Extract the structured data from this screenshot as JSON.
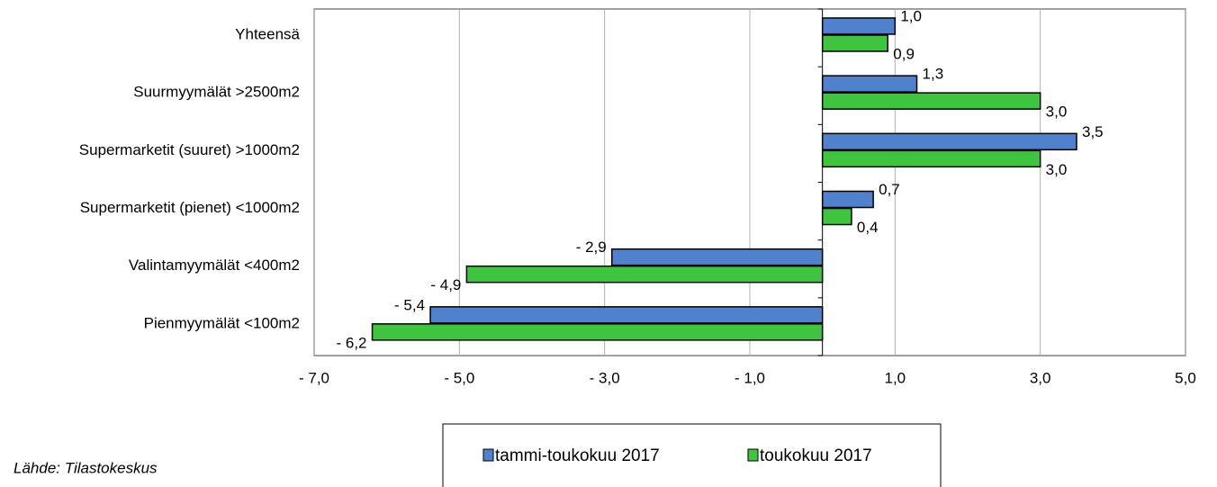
{
  "chart_data": {
    "type": "hbar",
    "categories": [
      "Yhteensä",
      "Suurmyymälät >2500m2",
      "Supermarketit (suuret) >1000m2",
      "Supermarketit (pienet) <1000m2",
      "Valintamyymälät <400m2",
      "Pienmyymälät  <100m2"
    ],
    "series": [
      {
        "name": "tammi-toukokuu 2017",
        "color": "#4f81cc",
        "values": [
          1.0,
          1.3,
          3.5,
          0.7,
          -2.9,
          -5.4
        ],
        "value_labels": [
          "1,0",
          "1,3",
          "3,5",
          "0,7",
          "- 2,9",
          "- 5,4"
        ]
      },
      {
        "name": "toukokuu 2017",
        "color": "#3fc43f",
        "values": [
          0.9,
          3.0,
          3.0,
          0.4,
          -4.9,
          -6.2
        ],
        "value_labels": [
          "0,9",
          "3,0",
          "3,0",
          "0,4",
          "- 4,9",
          "- 6,2"
        ]
      }
    ],
    "xlim": [
      -7,
      5
    ],
    "xticks": [
      {
        "value": -7,
        "label": "- 7,0"
      },
      {
        "value": -5,
        "label": "- 5,0"
      },
      {
        "value": -3,
        "label": "- 3,0"
      },
      {
        "value": -1,
        "label": "- 1,0"
      },
      {
        "value": 1,
        "label": "1,0"
      },
      {
        "value": 3,
        "label": "3,0"
      },
      {
        "value": 5,
        "label": "5,0"
      }
    ],
    "grid": true,
    "legend": "bottom",
    "source": "Lähde: Tilastokeskus"
  }
}
